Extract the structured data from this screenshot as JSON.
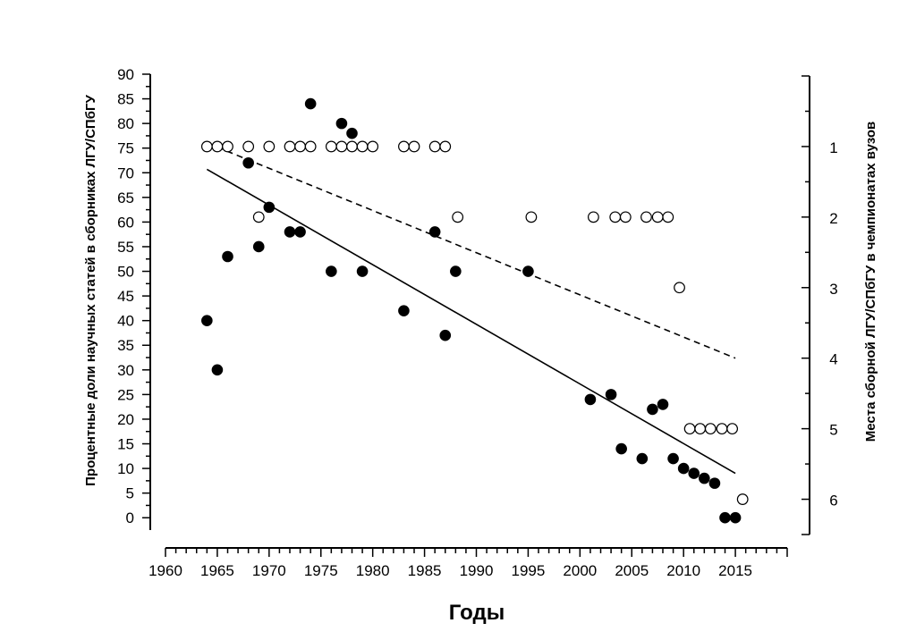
{
  "chart_data": {
    "type": "scatter",
    "xlabel": "Годы",
    "ylabel_left": "Процентные доли научных статей в сборниках ЛГУ/СПбГУ",
    "ylabel_right": "Места сборной ЛГУ/СПбГУ в чемпионатах вузов",
    "x_ticks": [
      1960,
      1965,
      1970,
      1975,
      1980,
      1985,
      1990,
      1995,
      2000,
      2005,
      2010,
      2015
    ],
    "x_range": [
      1960,
      2020
    ],
    "y_left_ticks": [
      0,
      5,
      10,
      15,
      20,
      25,
      30,
      35,
      40,
      45,
      50,
      55,
      60,
      65,
      70,
      75,
      80,
      85,
      90
    ],
    "y_left_range": [
      -2.5,
      90
    ],
    "y_right_ticks": [
      1,
      2,
      3,
      4,
      5,
      6
    ],
    "y_right_range": [
      0,
      6.5
    ],
    "y_right_inverted": true,
    "series": [
      {
        "marker": "filled-circle",
        "axis": "left",
        "points": [
          [
            1964,
            40
          ],
          [
            1965,
            30
          ],
          [
            1966,
            53
          ],
          [
            1968,
            72
          ],
          [
            1969,
            55
          ],
          [
            1970,
            63
          ],
          [
            1972,
            58
          ],
          [
            1973,
            58
          ],
          [
            1974,
            84
          ],
          [
            1976,
            50
          ],
          [
            1977,
            80
          ],
          [
            1978,
            78
          ],
          [
            1979,
            50
          ],
          [
            1983,
            42
          ],
          [
            1986,
            58
          ],
          [
            1987,
            37
          ],
          [
            1988,
            50
          ],
          [
            1995,
            50
          ],
          [
            2001,
            24
          ],
          [
            2003,
            25
          ],
          [
            2004,
            14
          ],
          [
            2006,
            12
          ],
          [
            2007,
            22
          ],
          [
            2008,
            23
          ],
          [
            2009,
            12
          ],
          [
            2010,
            10
          ],
          [
            2011,
            9
          ],
          [
            2012,
            8
          ],
          [
            2013,
            7
          ],
          [
            2014,
            0
          ],
          [
            2015,
            0
          ]
        ],
        "trend": {
          "from": [
            1964,
            70.7
          ],
          "to": [
            2015,
            9
          ],
          "style": "solid"
        }
      },
      {
        "marker": "open-circle",
        "axis": "right",
        "points": [
          [
            1964,
            1
          ],
          [
            1965,
            1
          ],
          [
            1966,
            1
          ],
          [
            1968,
            1
          ],
          [
            1969,
            2
          ],
          [
            1970,
            1
          ],
          [
            1972,
            1
          ],
          [
            1973,
            1
          ],
          [
            1974,
            1
          ],
          [
            1976,
            1
          ],
          [
            1977,
            1
          ],
          [
            1978,
            1
          ],
          [
            1979,
            1
          ],
          [
            1980,
            1
          ],
          [
            1983,
            1
          ],
          [
            1984,
            1
          ],
          [
            1986,
            1
          ],
          [
            1987,
            1
          ],
          [
            1988.2,
            2
          ],
          [
            1995.3,
            2
          ],
          [
            2001.3,
            2
          ],
          [
            2003.4,
            2
          ],
          [
            2004.4,
            2
          ],
          [
            2006.4,
            2
          ],
          [
            2007.5,
            2
          ],
          [
            2008.5,
            2
          ],
          [
            2009.6,
            3
          ],
          [
            2010.6,
            5
          ],
          [
            2011.6,
            5
          ],
          [
            2012.6,
            5
          ],
          [
            2013.7,
            5
          ],
          [
            2014.7,
            5
          ],
          [
            2015.7,
            6
          ]
        ],
        "trend": {
          "from": [
            1964,
            0.95
          ],
          "to": [
            2015,
            4.0
          ],
          "style": "dashed"
        }
      }
    ]
  }
}
